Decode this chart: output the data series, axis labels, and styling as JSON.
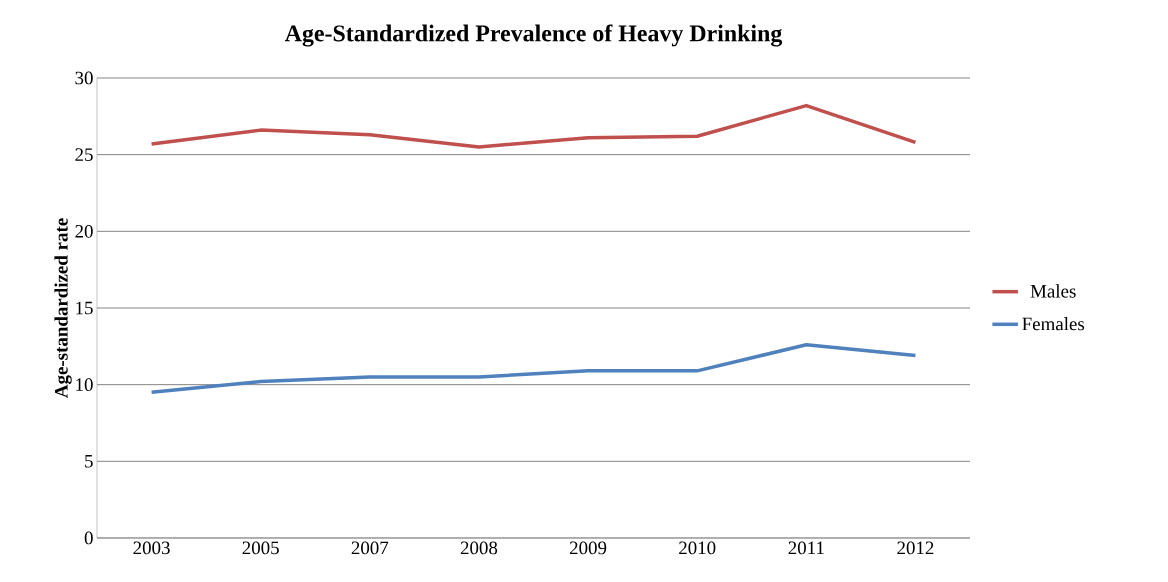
{
  "chart_data": {
    "type": "line",
    "title": "Age-Standardized Prevalence of Heavy Drinking",
    "ylabel": "Age-standardized rate",
    "categories": [
      "2003",
      "2005",
      "2007",
      "2008",
      "2009",
      "2010",
      "2011",
      "2012"
    ],
    "series": [
      {
        "name": "Males",
        "color": "#c0504d",
        "values": [
          25.7,
          26.6,
          26.3,
          25.5,
          26.1,
          26.2,
          28.2,
          25.8
        ]
      },
      {
        "name": "Females",
        "color": "#4f81bd",
        "values": [
          9.5,
          10.2,
          10.5,
          10.5,
          10.9,
          10.9,
          12.6,
          11.9
        ]
      }
    ],
    "ylim": [
      0,
      30
    ],
    "yticks": [
      0,
      5,
      10,
      15,
      20,
      25,
      30
    ],
    "grid": "y",
    "legend": "right",
    "marker": "none"
  }
}
